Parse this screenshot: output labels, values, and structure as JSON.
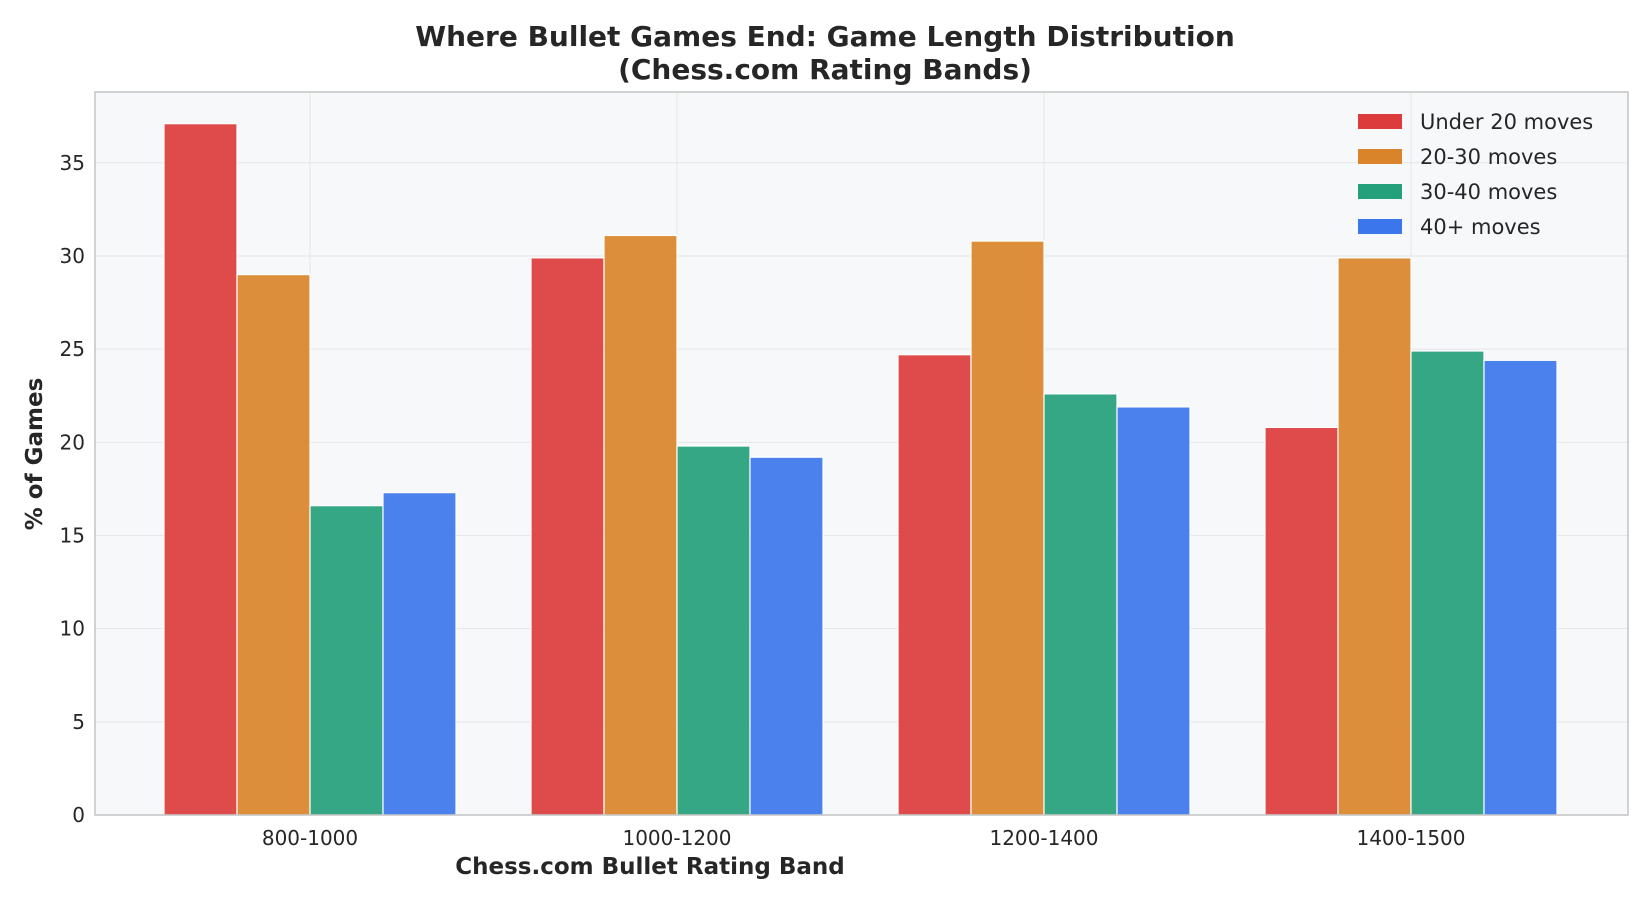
{
  "chart_data": {
    "type": "bar",
    "title_line1": "Where Bullet Games End: Game Length Distribution",
    "title_line2": "(Chess.com Rating Bands)",
    "xlabel": "Chess.com Bullet Rating Band",
    "ylabel": "% of Games",
    "categories": [
      "800-1000",
      "1000-1200",
      "1200-1400",
      "1400-1500"
    ],
    "series": [
      {
        "name": "Under 20 moves",
        "color": "#dc3c3c",
        "values": [
          37.1,
          29.9,
          24.7,
          20.8
        ]
      },
      {
        "name": "20-30 moves",
        "color": "#d9842a",
        "values": [
          29.0,
          31.1,
          30.8,
          29.9
        ]
      },
      {
        "name": "30-40 moves",
        "color": "#24a07a",
        "values": [
          16.6,
          19.8,
          22.6,
          24.9
        ]
      },
      {
        "name": "40+ moves",
        "color": "#3b76ec",
        "values": [
          17.3,
          19.2,
          21.9,
          24.4
        ]
      }
    ],
    "ylim": [
      0,
      38.8
    ],
    "yticks": [
      0,
      5,
      10,
      15,
      20,
      25,
      30,
      35
    ],
    "grid": true,
    "legend_position": "top-right",
    "plot_background": "#f7f8fa",
    "grid_color": "#e6e6e6",
    "axis_color": "#c4c4c4"
  }
}
